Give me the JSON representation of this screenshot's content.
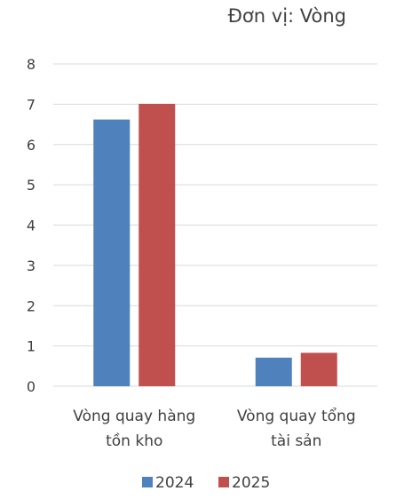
{
  "chart_data": {
    "type": "bar",
    "unit_label": "Đơn vị: Vòng",
    "categories": [
      [
        "Vòng quay hàng",
        "tồn kho"
      ],
      [
        "Vòng quay tổng",
        "tài sản"
      ]
    ],
    "series": [
      {
        "name": "2024",
        "color": "#4f81bd",
        "values": [
          6.62,
          0.71
        ]
      },
      {
        "name": "2025",
        "color": "#c0504d",
        "values": [
          7.01,
          0.83
        ]
      }
    ],
    "ylim": [
      0,
      8
    ],
    "yticks": [
      "0",
      "1",
      "2",
      "3",
      "4",
      "5",
      "6",
      "7",
      "8"
    ],
    "grid": true,
    "gridColor": "#d9d9d9",
    "legend_position": "bottom"
  }
}
